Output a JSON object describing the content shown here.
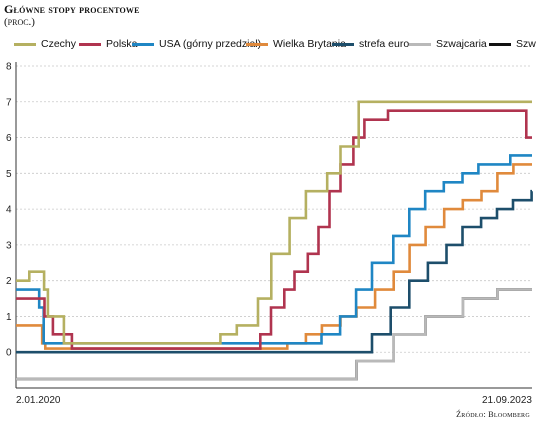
{
  "header": {
    "title": "Główne stopy procentowe",
    "subtitle": "(proc.)"
  },
  "source": "Źródło: Bloomberg",
  "chart_data": {
    "type": "line",
    "step": true,
    "xlabel": "",
    "ylabel": "",
    "x_tick_labels": [
      "2.01.2020",
      "21.09.2023"
    ],
    "x_range": [
      "2020-01-02",
      "2023-09-21"
    ],
    "ylim": [
      -1,
      8
    ],
    "yticks": [
      -1,
      0,
      1,
      2,
      3,
      4,
      5,
      6,
      7,
      8
    ],
    "grid": true,
    "legend_position": "top",
    "series": [
      {
        "name": "Czechy",
        "color": "#b5b061",
        "points": [
          [
            "2020-01-02",
            2.0
          ],
          [
            "2020-02-06",
            2.25
          ],
          [
            "2020-03-16",
            1.75
          ],
          [
            "2020-03-26",
            1.0
          ],
          [
            "2020-05-07",
            0.25
          ],
          [
            "2021-06-23",
            0.5
          ],
          [
            "2021-08-05",
            0.75
          ],
          [
            "2021-09-30",
            1.5
          ],
          [
            "2021-11-04",
            2.75
          ],
          [
            "2021-12-22",
            3.75
          ],
          [
            "2022-02-03",
            4.5
          ],
          [
            "2022-03-31",
            5.0
          ],
          [
            "2022-05-05",
            5.75
          ],
          [
            "2022-06-22",
            7.0
          ],
          [
            "2023-09-21",
            7.0
          ]
        ]
      },
      {
        "name": "Polska",
        "color": "#b0344f",
        "points": [
          [
            "2020-01-02",
            1.5
          ],
          [
            "2020-03-17",
            1.0
          ],
          [
            "2020-04-08",
            0.5
          ],
          [
            "2020-05-28",
            0.1
          ],
          [
            "2021-10-06",
            0.5
          ],
          [
            "2021-11-03",
            1.25
          ],
          [
            "2021-12-08",
            1.75
          ],
          [
            "2022-01-04",
            2.25
          ],
          [
            "2022-02-08",
            2.75
          ],
          [
            "2022-03-08",
            3.5
          ],
          [
            "2022-04-06",
            4.5
          ],
          [
            "2022-05-05",
            5.25
          ],
          [
            "2022-06-08",
            6.0
          ],
          [
            "2022-07-07",
            6.5
          ],
          [
            "2022-09-07",
            6.75
          ],
          [
            "2023-09-06",
            6.0
          ],
          [
            "2023-09-21",
            6.0
          ]
        ]
      },
      {
        "name": "USA (górny przedział)",
        "color": "#1f86c4",
        "points": [
          [
            "2020-01-02",
            1.75
          ],
          [
            "2020-03-03",
            1.25
          ],
          [
            "2020-03-15",
            0.25
          ],
          [
            "2022-03-16",
            0.5
          ],
          [
            "2022-05-04",
            1.0
          ],
          [
            "2022-06-15",
            1.75
          ],
          [
            "2022-07-27",
            2.5
          ],
          [
            "2022-09-21",
            3.25
          ],
          [
            "2022-11-02",
            4.0
          ],
          [
            "2022-12-14",
            4.5
          ],
          [
            "2023-02-01",
            4.75
          ],
          [
            "2023-03-22",
            5.0
          ],
          [
            "2023-05-03",
            5.25
          ],
          [
            "2023-07-26",
            5.5
          ],
          [
            "2023-09-21",
            5.5
          ]
        ]
      },
      {
        "name": "Wielka Brytania",
        "color": "#e08a3c",
        "points": [
          [
            "2020-01-02",
            0.75
          ],
          [
            "2020-03-11",
            0.25
          ],
          [
            "2020-03-19",
            0.1
          ],
          [
            "2021-12-16",
            0.25
          ],
          [
            "2022-02-03",
            0.5
          ],
          [
            "2022-03-17",
            0.75
          ],
          [
            "2022-05-05",
            1.0
          ],
          [
            "2022-06-16",
            1.25
          ],
          [
            "2022-08-04",
            1.75
          ],
          [
            "2022-09-22",
            2.25
          ],
          [
            "2022-11-03",
            3.0
          ],
          [
            "2022-12-15",
            3.5
          ],
          [
            "2023-02-02",
            4.0
          ],
          [
            "2023-03-23",
            4.25
          ],
          [
            "2023-05-11",
            4.5
          ],
          [
            "2023-06-22",
            5.0
          ],
          [
            "2023-08-03",
            5.25
          ],
          [
            "2023-09-21",
            5.25
          ]
        ]
      },
      {
        "name": "strefa euro",
        "color": "#1d4e6b",
        "points": [
          [
            "2020-01-02",
            0.0
          ],
          [
            "2022-07-27",
            0.5
          ],
          [
            "2022-09-14",
            1.25
          ],
          [
            "2022-11-02",
            2.0
          ],
          [
            "2022-12-21",
            2.5
          ],
          [
            "2023-02-08",
            3.0
          ],
          [
            "2023-03-22",
            3.5
          ],
          [
            "2023-05-10",
            3.75
          ],
          [
            "2023-06-21",
            4.0
          ],
          [
            "2023-08-02",
            4.25
          ],
          [
            "2023-09-20",
            4.5
          ],
          [
            "2023-09-21",
            4.5
          ]
        ]
      },
      {
        "name": "Szwajcaria",
        "color": "#b9b9b9",
        "points": [
          [
            "2020-01-02",
            -0.75
          ],
          [
            "2022-06-16",
            -0.25
          ],
          [
            "2022-09-22",
            0.5
          ],
          [
            "2022-12-15",
            1.0
          ],
          [
            "2023-03-23",
            1.5
          ],
          [
            "2023-06-22",
            1.75
          ],
          [
            "2023-09-21",
            1.75
          ]
        ]
      },
      {
        "name": "Szwecja",
        "color": "#111111",
        "points": [
          [
            "2020-01-02",
            -0.75
          ],
          [
            "2021-01-01",
            -0.75
          ],
          [
            "2022-06-16",
            -0.25
          ],
          [
            "2022-09-22",
            0.5
          ],
          [
            "2022-12-15",
            1.0
          ],
          [
            "2023-03-23",
            1.5
          ],
          [
            "2023-06-22",
            1.75
          ],
          [
            "2023-09-21",
            1.75
          ]
        ]
      }
    ]
  }
}
